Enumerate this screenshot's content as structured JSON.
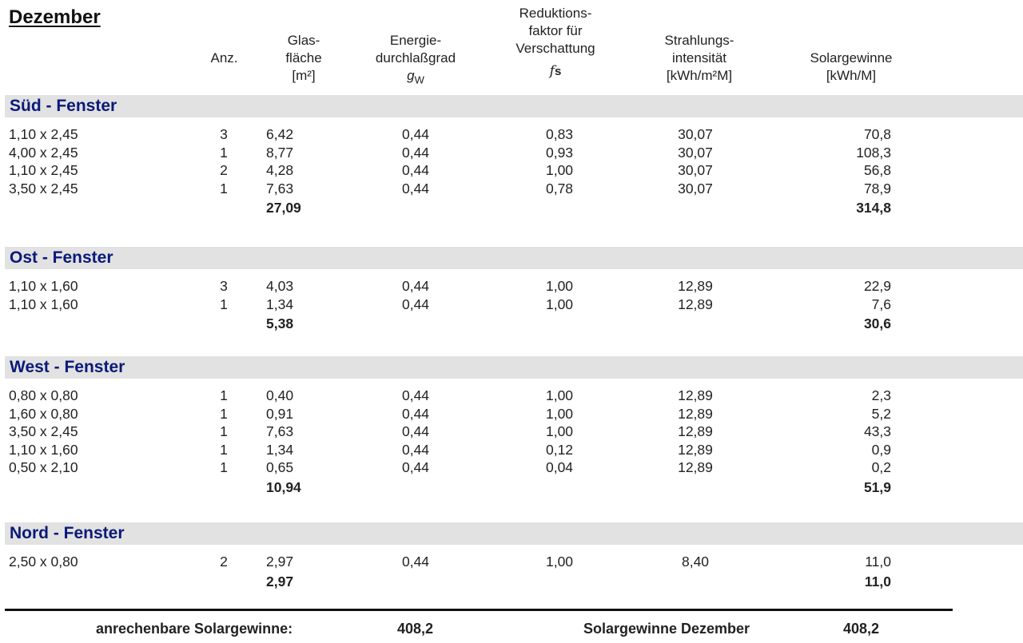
{
  "title": "Dezember",
  "headers": {
    "anz": [
      "Anz."
    ],
    "glas": [
      "Glas-",
      "fläche",
      "[m²]"
    ],
    "energie": [
      "Energie-",
      "durchlaßgrad",
      "gW"
    ],
    "reduktion": [
      "Reduktions-",
      "faktor für",
      "Verschattung",
      "fs"
    ],
    "strahlung": [
      "Strahlungs-",
      "intensität",
      "[kWh/m²M]"
    ],
    "solar": [
      "Solargewinne",
      "[kWh/M]"
    ]
  },
  "sections": [
    {
      "name": "Süd - Fenster",
      "rows": [
        {
          "dim": "1,10 x 2,45",
          "anz": "3",
          "glas": "6,42",
          "g": "0,44",
          "f": "0,83",
          "s": "30,07",
          "sg": "70,8"
        },
        {
          "dim": "4,00 x 2,45",
          "anz": "1",
          "glas": "8,77",
          "g": "0,44",
          "f": "0,93",
          "s": "30,07",
          "sg": "108,3"
        },
        {
          "dim": "1,10 x 2,45",
          "anz": "2",
          "glas": "4,28",
          "g": "0,44",
          "f": "1,00",
          "s": "30,07",
          "sg": "56,8"
        },
        {
          "dim": "3,50 x 2,45",
          "anz": "1",
          "glas": "7,63",
          "g": "0,44",
          "f": "0,78",
          "s": "30,07",
          "sg": "78,9"
        }
      ],
      "total_glas": "27,09",
      "total_solar": "314,8"
    },
    {
      "name": "Ost - Fenster",
      "rows": [
        {
          "dim": "1,10 x 1,60",
          "anz": "3",
          "glas": "4,03",
          "g": "0,44",
          "f": "1,00",
          "s": "12,89",
          "sg": "22,9"
        },
        {
          "dim": "1,10 x 1,60",
          "anz": "1",
          "glas": "1,34",
          "g": "0,44",
          "f": "1,00",
          "s": "12,89",
          "sg": "7,6"
        }
      ],
      "total_glas": "5,38",
      "total_solar": "30,6"
    },
    {
      "name": "West - Fenster",
      "rows": [
        {
          "dim": "0,80 x 0,80",
          "anz": "1",
          "glas": "0,40",
          "g": "0,44",
          "f": "1,00",
          "s": "12,89",
          "sg": "2,3"
        },
        {
          "dim": "1,60 x 0,80",
          "anz": "1",
          "glas": "0,91",
          "g": "0,44",
          "f": "1,00",
          "s": "12,89",
          "sg": "5,2"
        },
        {
          "dim": "3,50 x 2,45",
          "anz": "1",
          "glas": "7,63",
          "g": "0,44",
          "f": "1,00",
          "s": "12,89",
          "sg": "43,3"
        },
        {
          "dim": "1,10 x 1,60",
          "anz": "1",
          "glas": "1,34",
          "g": "0,44",
          "f": "0,12",
          "s": "12,89",
          "sg": "0,9"
        },
        {
          "dim": "0,50 x 2,10",
          "anz": "1",
          "glas": "0,65",
          "g": "0,44",
          "f": "0,04",
          "s": "12,89",
          "sg": "0,2"
        }
      ],
      "total_glas": "10,94",
      "total_solar": "51,9"
    },
    {
      "name": "Nord - Fenster",
      "rows": [
        {
          "dim": "2,50 x 0,80",
          "anz": "2",
          "glas": "2,97",
          "g": "0,44",
          "f": "1,00",
          "s": "8,40",
          "sg": "11,0"
        }
      ],
      "total_glas": "2,97",
      "total_solar": "11,0"
    }
  ],
  "footer": {
    "label_left": "anrechenbare Solargewinne:",
    "value_left": "408,2",
    "label_right": "Solargewinne Dezember",
    "value_right": "408,2"
  },
  "colors": {
    "section_title": "#0a1a78",
    "band": "#e2e2e2"
  }
}
